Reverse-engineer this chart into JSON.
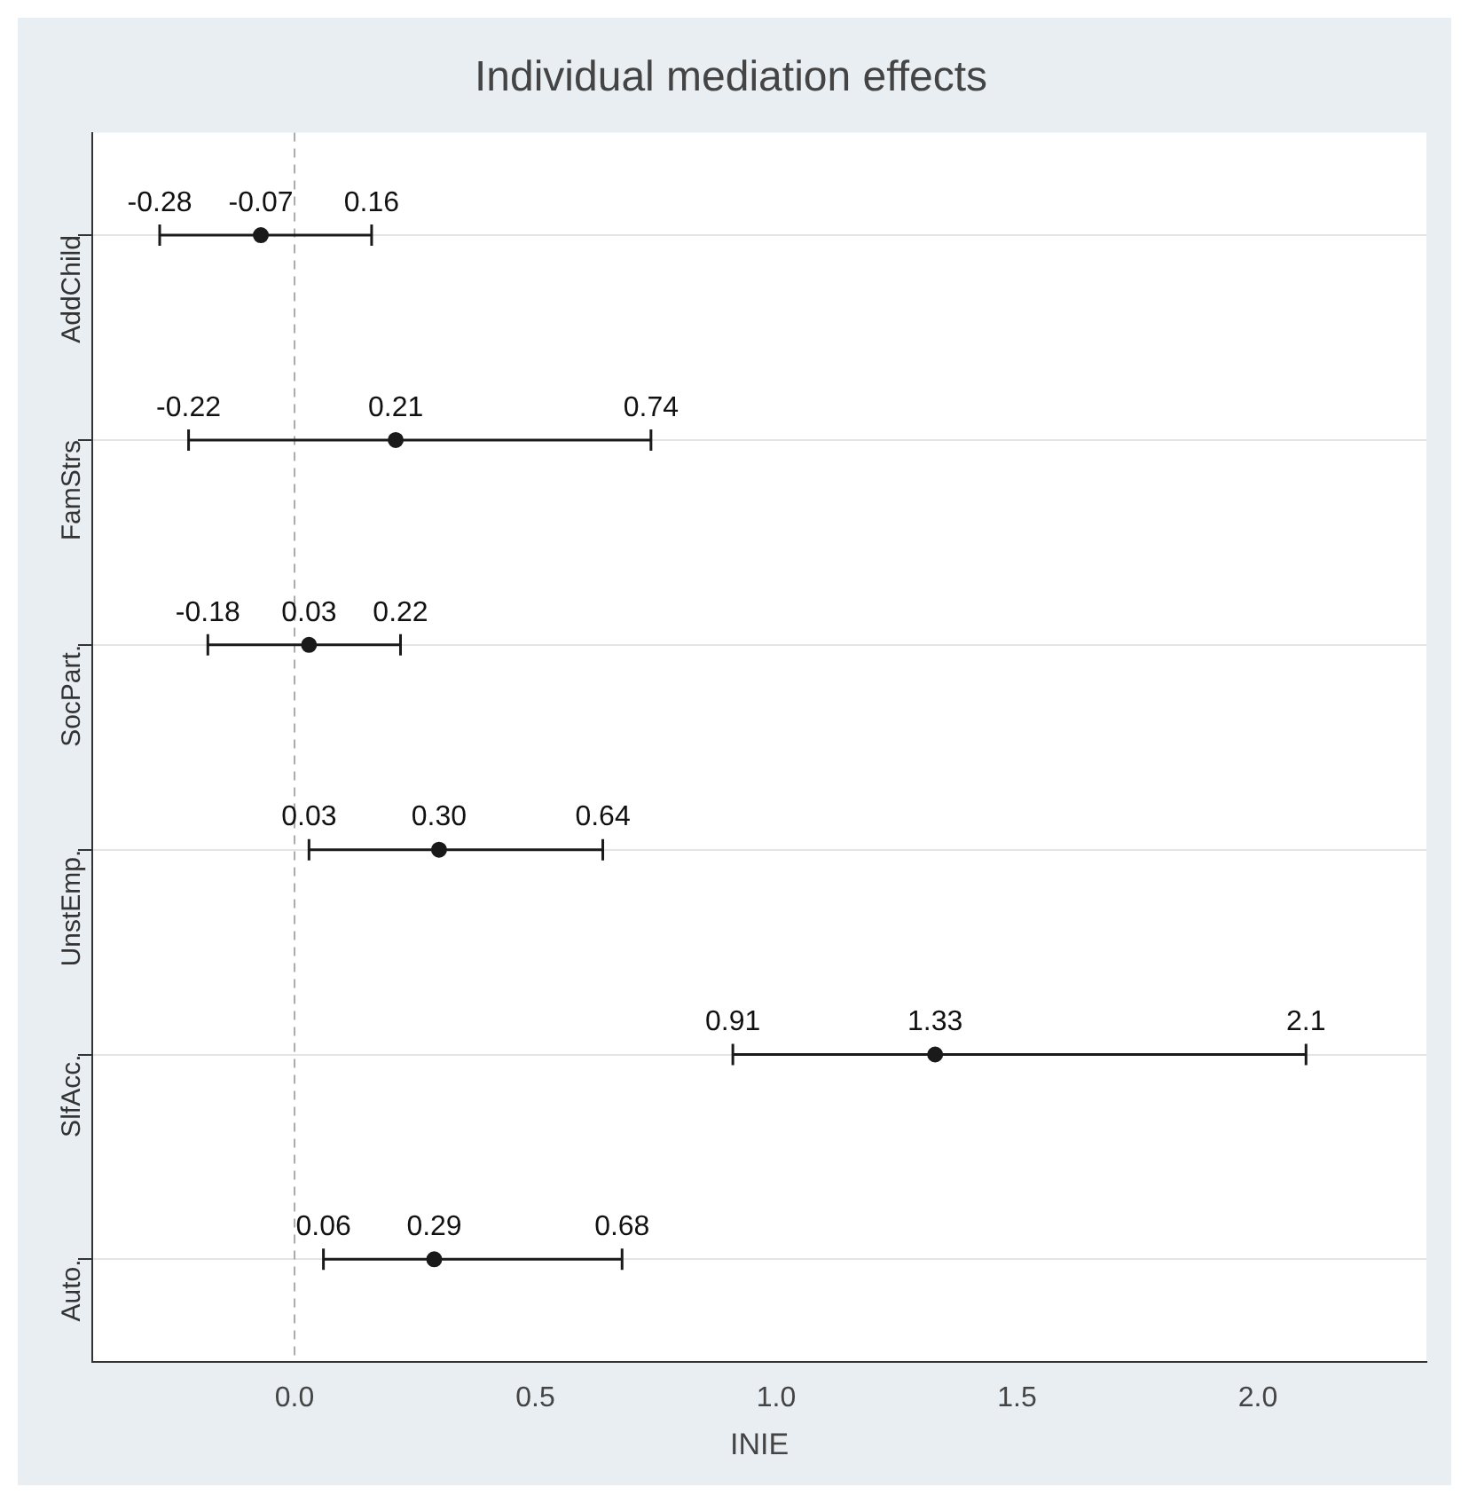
{
  "chart_data": {
    "type": "scatter",
    "orientation": "horizontal",
    "title": "Individual mediation effects",
    "xlabel": "INIE",
    "categories": [
      "AddChild",
      "FamStrs",
      "SocPart.",
      "UnstEmp.",
      "SlfAcc.",
      "Auto."
    ],
    "series": [
      {
        "color": "#1a1a1a",
        "values": [
          -0.07,
          0.21,
          0.03,
          0.3,
          1.33,
          0.29
        ],
        "errors": [
          [
            -0.28,
            0.16
          ],
          [
            -0.22,
            0.74
          ],
          [
            -0.18,
            0.22
          ],
          [
            0.03,
            0.64
          ],
          [
            0.91,
            2.1
          ],
          [
            0.06,
            0.68
          ]
        ],
        "value_labels": [
          "-0.07",
          "0.21",
          "0.03",
          "0.30",
          "1.33",
          "0.29"
        ]
      }
    ],
    "annotations": [
      "-0.28",
      "0.16",
      "-0.22",
      "0.74",
      "-0.18",
      "0.22",
      "0.03",
      "0.64",
      "0.91",
      "2.1",
      "0.06",
      "0.68"
    ],
    "xlim": [
      -0.42,
      2.35
    ],
    "xticks": [
      {
        "value": 0,
        "label": "0.0"
      },
      {
        "value": 0.5,
        "label": "0.5"
      },
      {
        "value": 1,
        "label": "1.0"
      },
      {
        "value": 1.5,
        "label": "1.5"
      },
      {
        "value": 2,
        "label": "2.0"
      }
    ],
    "ref_lines": [
      {
        "axis": "x",
        "value": 0,
        "color": "#aaaaaa",
        "line_style": "dashed"
      }
    ],
    "grid": "y",
    "marker": "circle",
    "legend": false
  }
}
